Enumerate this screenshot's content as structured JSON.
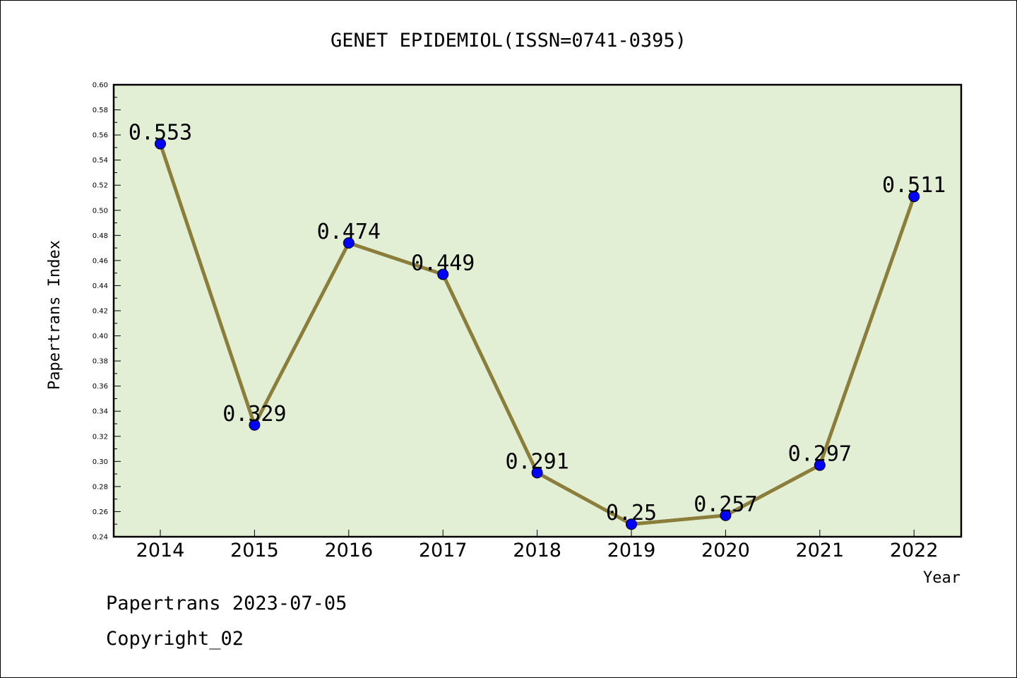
{
  "chart_data": {
    "type": "line",
    "title": "GENET EPIDEMIOL(ISSN=0741-0395)",
    "xlabel": "Year",
    "ylabel": "Papertrans Index",
    "categories": [
      "2014",
      "2015",
      "2016",
      "2017",
      "2018",
      "2019",
      "2020",
      "2021",
      "2022"
    ],
    "values": [
      0.553,
      0.329,
      0.474,
      0.449,
      0.291,
      0.25,
      0.257,
      0.297,
      0.511
    ],
    "data_labels": [
      "0.553",
      "0.329",
      "0.474",
      "0.449",
      "0.291",
      "0.25",
      "0.257",
      "0.297",
      "0.511"
    ],
    "ylim": [
      0.24,
      0.6
    ],
    "yticks": [
      "0.24",
      "0.26",
      "0.28",
      "0.30",
      "0.32",
      "0.34",
      "0.36",
      "0.38",
      "0.40",
      "0.42",
      "0.44",
      "0.46",
      "0.48",
      "0.50",
      "0.52",
      "0.54",
      "0.56",
      "0.58",
      "0.60"
    ],
    "grid": false,
    "colors": {
      "plot_background": "#e2efd5",
      "line": "#8b7d3a",
      "marker": "#0000ff"
    }
  },
  "footer": {
    "date_line": "Papertrans 2023-07-05",
    "copyright": "Copyright_02"
  }
}
